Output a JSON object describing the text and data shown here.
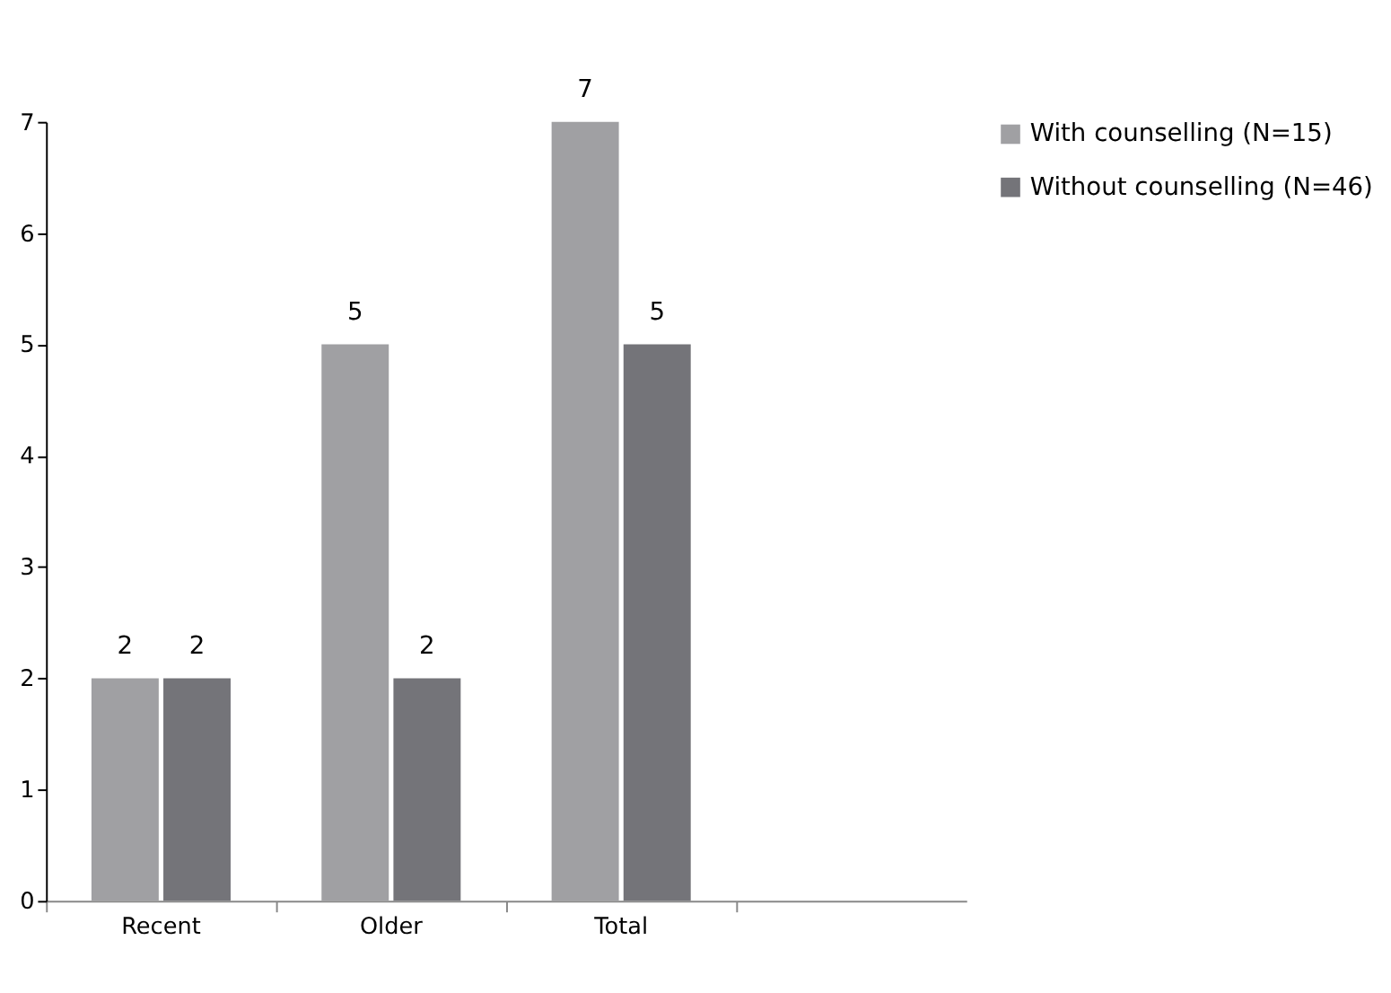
{
  "chart_data": {
    "type": "bar",
    "categories": [
      "Recent",
      "Older",
      "Total",
      null
    ],
    "series": [
      {
        "name": "With counselling (N=15)",
        "color": "#a0a0a3",
        "values": [
          2,
          5,
          7,
          null
        ]
      },
      {
        "name": "Without counselling (N=46)",
        "color": "#747479",
        "values": [
          2,
          2,
          5,
          null
        ]
      }
    ],
    "ylim": [
      0,
      7
    ],
    "yticks": [
      0,
      1,
      2,
      3,
      4,
      5,
      6,
      7
    ],
    "grid": false,
    "legend": "right",
    "data_labels": true
  }
}
